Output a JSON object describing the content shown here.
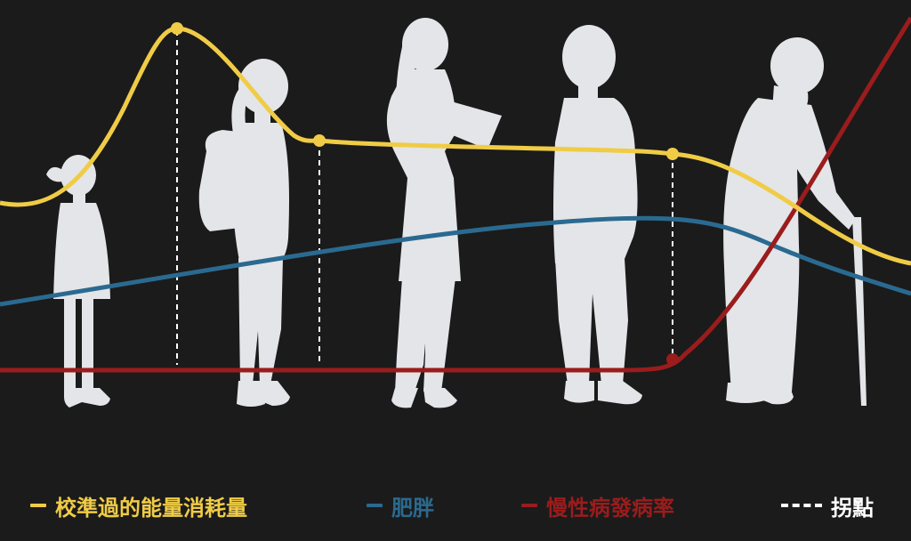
{
  "colors": {
    "background": "#1b1b1b",
    "silhouette": "#e4e5e8",
    "energy": "#f0cc46",
    "obesity": "#2a6a90",
    "chronic": "#9b1c1c",
    "turning_point": "#ffffff"
  },
  "figures": [
    "child-silhouette",
    "teen-silhouette",
    "woman-silhouette",
    "man-silhouette",
    "elderly-silhouette"
  ],
  "legend": {
    "energy_label": "校準過的能量消耗量",
    "obesity_label": "肥胖",
    "chronic_label": "慢性病發病率",
    "turning_label": "拐點"
  }
}
